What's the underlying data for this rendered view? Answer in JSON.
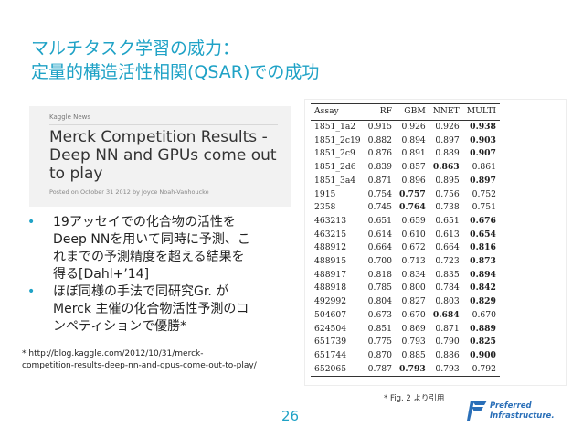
{
  "slide": {
    "title_line1": "マルチタスク学習の威力：",
    "title_line2": "定量的構造活性相関(QSAR)での成功",
    "page_number": "26",
    "fig_ref": "* Fig. 2 より引用"
  },
  "news": {
    "source": "Kaggle News",
    "headline": [
      "Merck Competition Results -",
      "Deep NN and GPUs come out",
      "to play"
    ],
    "posted": "Posted on October 31 2012 by Joyce Noah-Vanhoucke"
  },
  "bullets": [
    {
      "lines": [
        "19アッセイでの化合物の活性を",
        "Deep NNを用いて同時に予測、こ",
        "れまでの予測精度を超える結果を",
        "得る[Dahl+’14]"
      ]
    },
    {
      "lines": [
        "ほぼ同様の手法で同研究Gr. が",
        "Merck 主催の化合物活性予測のコ",
        "ンペティションで優勝*"
      ]
    }
  ],
  "footnote": [
    "* http://blog.kaggle.com/2012/10/31/merck-",
    "competition-results-deep-nn-and-gpus-come-out-to-play/"
  ],
  "table": {
    "headers": [
      "Assay",
      "RF",
      "GBM",
      "NNET",
      "MULTI"
    ],
    "rows": [
      {
        "cells": [
          "1851_1a2",
          "0.915",
          "0.926",
          "0.926",
          "0.938"
        ],
        "bold": 4
      },
      {
        "cells": [
          "1851_2c19",
          "0.882",
          "0.894",
          "0.897",
          "0.903"
        ],
        "bold": 4
      },
      {
        "cells": [
          "1851_2c9",
          "0.876",
          "0.891",
          "0.889",
          "0.907"
        ],
        "bold": 4
      },
      {
        "cells": [
          "1851_2d6",
          "0.839",
          "0.857",
          "0.863",
          "0.861"
        ],
        "bold": 3
      },
      {
        "cells": [
          "1851_3a4",
          "0.871",
          "0.896",
          "0.895",
          "0.897"
        ],
        "bold": 4
      },
      {
        "cells": [
          "1915",
          "0.754",
          "0.757",
          "0.756",
          "0.752"
        ],
        "bold": 2
      },
      {
        "cells": [
          "2358",
          "0.745",
          "0.764",
          "0.738",
          "0.751"
        ],
        "bold": 2
      },
      {
        "cells": [
          "463213",
          "0.651",
          "0.659",
          "0.651",
          "0.676"
        ],
        "bold": 4
      },
      {
        "cells": [
          "463215",
          "0.614",
          "0.610",
          "0.613",
          "0.654"
        ],
        "bold": 4
      },
      {
        "cells": [
          "488912",
          "0.664",
          "0.672",
          "0.664",
          "0.816"
        ],
        "bold": 4
      },
      {
        "cells": [
          "488915",
          "0.700",
          "0.713",
          "0.723",
          "0.873"
        ],
        "bold": 4
      },
      {
        "cells": [
          "488917",
          "0.818",
          "0.834",
          "0.835",
          "0.894"
        ],
        "bold": 4
      },
      {
        "cells": [
          "488918",
          "0.785",
          "0.800",
          "0.784",
          "0.842"
        ],
        "bold": 4
      },
      {
        "cells": [
          "492992",
          "0.804",
          "0.827",
          "0.803",
          "0.829"
        ],
        "bold": 4
      },
      {
        "cells": [
          "504607",
          "0.673",
          "0.670",
          "0.684",
          "0.670"
        ],
        "bold": 3
      },
      {
        "cells": [
          "624504",
          "0.851",
          "0.869",
          "0.871",
          "0.889"
        ],
        "bold": 4
      },
      {
        "cells": [
          "651739",
          "0.775",
          "0.793",
          "0.790",
          "0.825"
        ],
        "bold": 4
      },
      {
        "cells": [
          "651744",
          "0.870",
          "0.885",
          "0.886",
          "0.900"
        ],
        "bold": 4
      },
      {
        "cells": [
          "652065",
          "0.787",
          "0.793",
          "0.793",
          "0.792"
        ],
        "bold": 2
      }
    ]
  },
  "logo": {
    "line1": "Preferred",
    "line2": "Infrastructure.",
    "color": "#2a6fb8"
  }
}
